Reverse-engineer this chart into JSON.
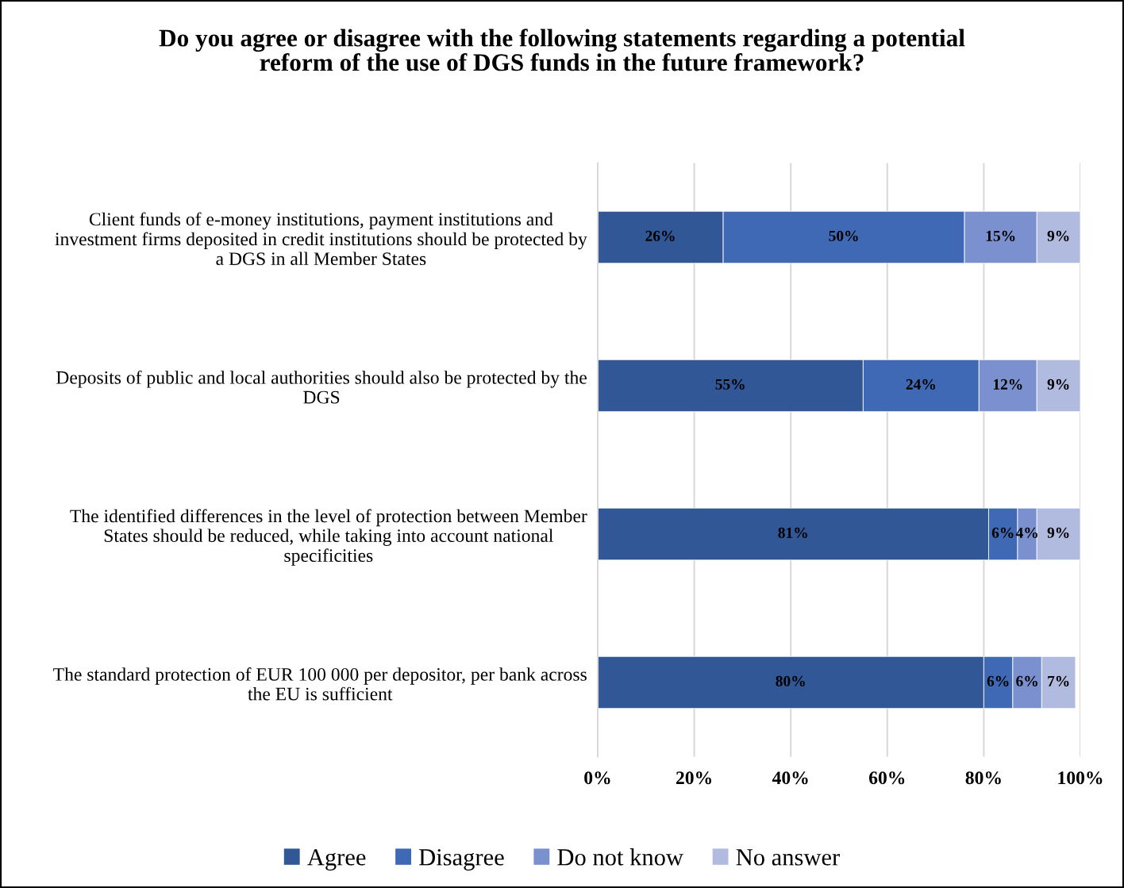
{
  "chart_data": {
    "type": "bar",
    "orientation": "horizontal",
    "stacked": true,
    "title": "Do you agree or disagree with the following statements regarding a potential\nreform of the use of DGS funds in the future framework?",
    "categories": [
      "Client funds of e-money institutions, payment institutions and\ninvestment firms deposited in credit institutions should be protected by\na DGS in all Member States",
      "Deposits of public and local authorities should also be protected by the\nDGS",
      "The identified differences in the level of protection between Member\nStates should be reduced, while taking into account national\nspecificities",
      "The standard protection of EUR 100 000 per depositor, per bank across\nthe EU is sufficient"
    ],
    "series": [
      {
        "name": "Agree",
        "color": "#325797",
        "values": [
          26,
          55,
          81,
          80
        ],
        "value_labels": [
          "26%",
          "55%",
          "81%",
          "80%"
        ]
      },
      {
        "name": "Disagree",
        "color": "#3f69b5",
        "values": [
          50,
          24,
          6,
          6
        ],
        "value_labels": [
          "50%",
          "24%",
          "6%",
          "6%"
        ]
      },
      {
        "name": "Do not know",
        "color": "#7a90cf",
        "values": [
          15,
          12,
          4,
          6
        ],
        "value_labels": [
          "15%",
          "12%",
          "4%",
          "6%"
        ]
      },
      {
        "name": "No answer",
        "color": "#b1bbdf",
        "values": [
          9,
          9,
          9,
          7
        ],
        "value_labels": [
          "9%",
          "9%",
          "9%",
          "7%"
        ]
      }
    ],
    "xlim": [
      0,
      100
    ],
    "xticks": [
      {
        "value": 0,
        "label": "0%"
      },
      {
        "value": 20,
        "label": "20%"
      },
      {
        "value": 40,
        "label": "40%"
      },
      {
        "value": 60,
        "label": "60%"
      },
      {
        "value": 80,
        "label": "80%"
      },
      {
        "value": 100,
        "label": "100%"
      }
    ],
    "grid": "x",
    "legend": "bottom"
  }
}
